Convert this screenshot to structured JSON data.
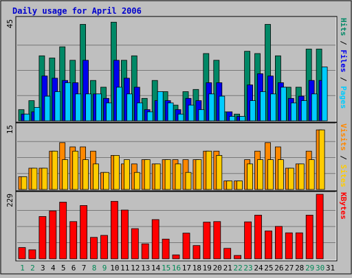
{
  "colors": {
    "background": "#bfbfbf",
    "title": "#0000cc",
    "hits": "#008866",
    "files": "#0000ee",
    "pages": "#00ccff",
    "visits": "#ff8800",
    "sites": "#ffcc00",
    "kbytes": "#ff0000",
    "weekend_day": "#008855",
    "weekday_day": "#000000"
  },
  "chart_data": {
    "type": "bar",
    "title": "Daily usage for April 2006",
    "categories": [
      "1",
      "2",
      "3",
      "4",
      "5",
      "6",
      "7",
      "8",
      "9",
      "10",
      "11",
      "12",
      "13",
      "14",
      "15",
      "16",
      "17",
      "18",
      "19",
      "20",
      "21",
      "22",
      "23",
      "24",
      "25",
      "26",
      "27",
      "28",
      "29",
      "30",
      "31"
    ],
    "weekend_days": [
      "1",
      "2",
      "8",
      "9",
      "15",
      "16",
      "22",
      "23",
      "29",
      "30"
    ],
    "panels": [
      {
        "id": "hits",
        "axis_top_label": "45",
        "ylim": [
          0,
          45
        ],
        "side_labels": [
          "Hits",
          "Files",
          "Pages"
        ],
        "series": [
          {
            "name": "Hits",
            "values": [
              5,
              9,
              29,
              28,
              33,
              27,
              43,
              18,
              15,
              44,
              27,
              29,
              10,
              18,
              13,
              7,
              13,
              14,
              30,
              27,
              4,
              3,
              31,
              30,
              43,
              29,
              15,
              15,
              32,
              32,
              0
            ]
          },
          {
            "name": "Files",
            "values": [
              3,
              4,
              20,
              19,
              18,
              17,
              27,
              12,
              10,
              27,
              19,
              15,
              5,
              9,
              9,
              5,
              10,
              9,
              17,
              17,
              4,
              2,
              16,
              21,
              20,
              17,
              10,
              11,
              18,
              18,
              0
            ]
          },
          {
            "name": "Pages",
            "values": [
              3,
              6,
              11,
              13,
              17,
              12,
              12,
              12,
              8,
              15,
              12,
              8,
              4,
              13,
              8,
              3,
              7,
              5,
              12,
              11,
              2,
              2,
              9,
              13,
              12,
              15,
              8,
              9,
              12,
              24,
              0
            ]
          }
        ]
      },
      {
        "id": "visits",
        "axis_top_label": "15",
        "ylim": [
          0,
          15
        ],
        "side_labels": [
          "Visits",
          "Sites"
        ],
        "series": [
          {
            "name": "Visits",
            "values": [
              3,
              5,
              5,
              9,
              11,
              10,
              10,
              9,
              4,
              8,
              6,
              6,
              7,
              6,
              7,
              7,
              7,
              7,
              9,
              9,
              2,
              2,
              7,
              9,
              11,
              10,
              5,
              6,
              9,
              14,
              0
            ]
          },
          {
            "name": "Sites",
            "values": [
              3,
              5,
              5,
              9,
              7,
              9,
              7,
              6,
              4,
              8,
              7,
              4,
              7,
              6,
              7,
              6,
              4,
              7,
              9,
              8,
              2,
              2,
              6,
              7,
              7,
              7,
              5,
              6,
              7,
              14,
              0
            ]
          }
        ]
      },
      {
        "id": "kbytes",
        "axis_top_label": "229",
        "ylim": [
          0,
          229
        ],
        "side_labels": [
          "KBytes"
        ],
        "series": [
          {
            "name": "KBytes",
            "values": [
              40,
              32,
              150,
              170,
              201,
              132,
              189,
              76,
              83,
              204,
              173,
              107,
              53,
              139,
              70,
              14,
              91,
              47,
              130,
              132,
              37,
              12,
              131,
              155,
              99,
              115,
              92,
              92,
              155,
              229,
              0
            ]
          }
        ]
      }
    ]
  }
}
